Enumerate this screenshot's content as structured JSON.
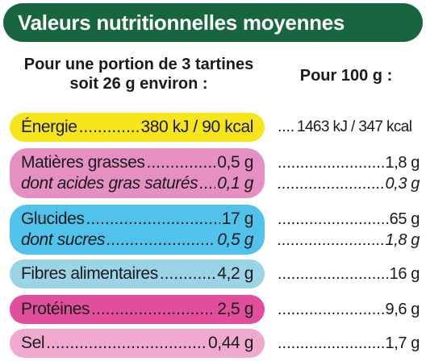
{
  "header": {
    "title": "Valeurs nutritionnelles moyennes"
  },
  "columns": {
    "portion_line1": "Pour une portion de 3 tartines",
    "portion_line2": "soit 26 g environ :",
    "per100": "Pour 100 g :"
  },
  "colors": {
    "banner": "#17663f",
    "energie": "#f6e51a",
    "matieres": "#e58fc3",
    "glucides": "#4fc3ec",
    "fibres": "#9ad4e6",
    "proteines": "#e04e9c",
    "sel": "#f0a9cf"
  },
  "rows": [
    {
      "label": "Énergie",
      "portion": "380 kJ / 90 kcal",
      "per100": "1463 kJ / 347 kcal"
    },
    {
      "label": "Matières grasses",
      "portion": "0,5 g",
      "per100": "1,8 g"
    },
    {
      "label": "dont acides gras saturés",
      "portion": "0,1 g",
      "per100": "0,3 g"
    },
    {
      "label": "Glucides",
      "portion": "17 g",
      "per100": "65 g"
    },
    {
      "label": "dont sucres",
      "portion": "0,5 g",
      "per100": "1,8 g"
    },
    {
      "label": "Fibres alimentaires",
      "portion": "4,2 g",
      "per100": "16 g"
    },
    {
      "label": "Protéines",
      "portion": "2,5 g",
      "per100": "9,6 g"
    },
    {
      "label": "Sel",
      "portion": "0,44 g",
      "per100": "1,7 g"
    }
  ]
}
